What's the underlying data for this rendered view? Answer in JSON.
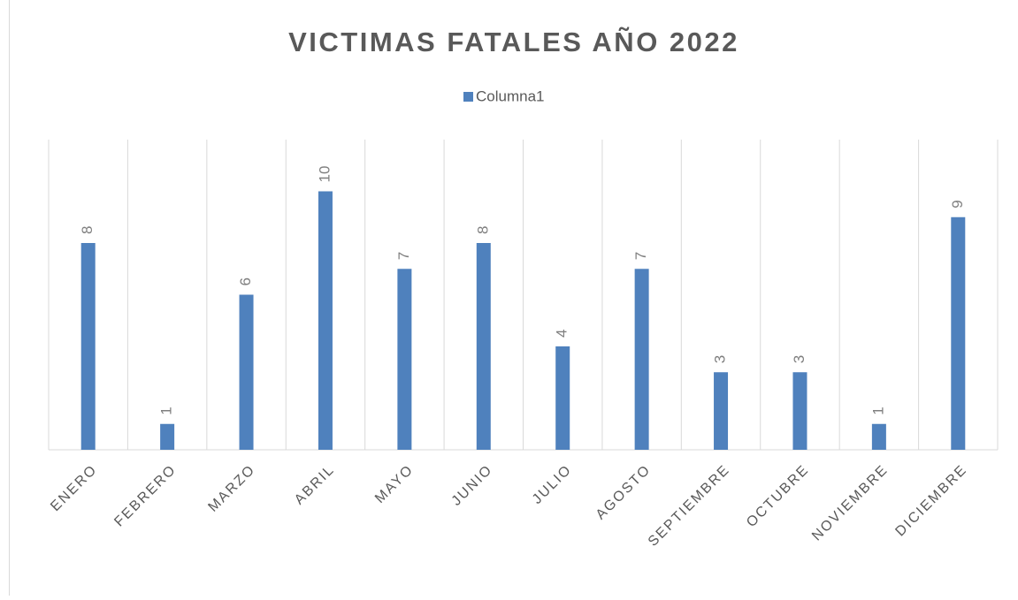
{
  "chart_data": {
    "type": "bar",
    "title": "VICTIMAS FATALES AÑO 2022",
    "categories": [
      "ENERO",
      "FEBRERO",
      "MARZO",
      "ABRIL",
      "MAYO",
      "JUNIO",
      "JULIO",
      "AGOSTO",
      "SEPTIEMBRE",
      "OCTUBRE",
      "NOVIEMBRE",
      "DICIEMBRE"
    ],
    "series": [
      {
        "name": "Columna1",
        "color": "#4f81bd",
        "values": [
          8,
          1,
          6,
          10,
          7,
          8,
          4,
          7,
          3,
          3,
          1,
          9
        ]
      }
    ],
    "ylim": [
      0,
      12
    ],
    "legend": "top"
  }
}
